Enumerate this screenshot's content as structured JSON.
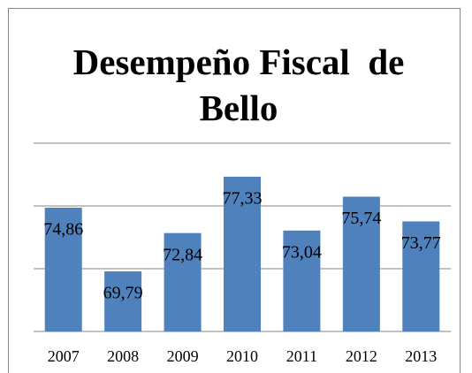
{
  "chart_data": {
    "type": "bar",
    "title": "Desempeño Fiscal  de Bello",
    "categories": [
      "2007",
      "2008",
      "2009",
      "2010",
      "2011",
      "2012",
      "2013"
    ],
    "values": [
      74.86,
      69.79,
      72.84,
      77.33,
      73.04,
      75.74,
      73.77
    ],
    "value_labels": [
      "74,86",
      "69,79",
      "72,84",
      "77,33",
      "73,04",
      "75,74",
      "73,77"
    ],
    "color": "#4f81bd",
    "ylim": [
      65,
      80
    ],
    "yticks": [
      65,
      70,
      75,
      80
    ],
    "grid": true
  }
}
